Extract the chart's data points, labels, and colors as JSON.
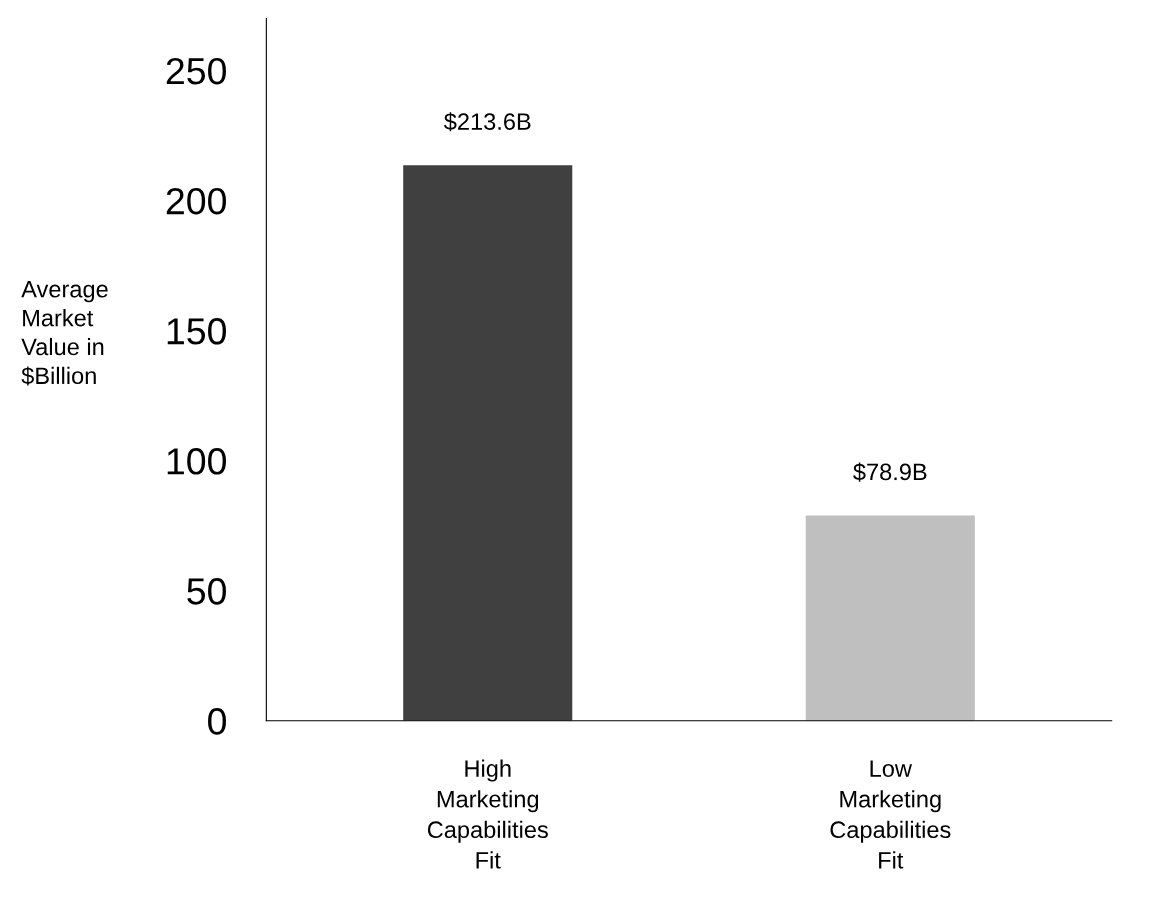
{
  "chart_data": {
    "type": "bar",
    "ylabel": "Average\nMarket\nValue in\n$Billion",
    "categories": [
      "High\nMarketing\nCapabilities\nFit",
      "Low\nMarketing\nCapabilities\nFit"
    ],
    "values": [
      213.6,
      78.9
    ],
    "colors": [
      "#404040",
      "#bfbfbf"
    ],
    "value_labels": [
      "$213.6B",
      "$78.9B"
    ],
    "ylim": [
      0,
      270
    ],
    "yticks": [
      0,
      50,
      100,
      150,
      200,
      250
    ],
    "grid": false
  }
}
